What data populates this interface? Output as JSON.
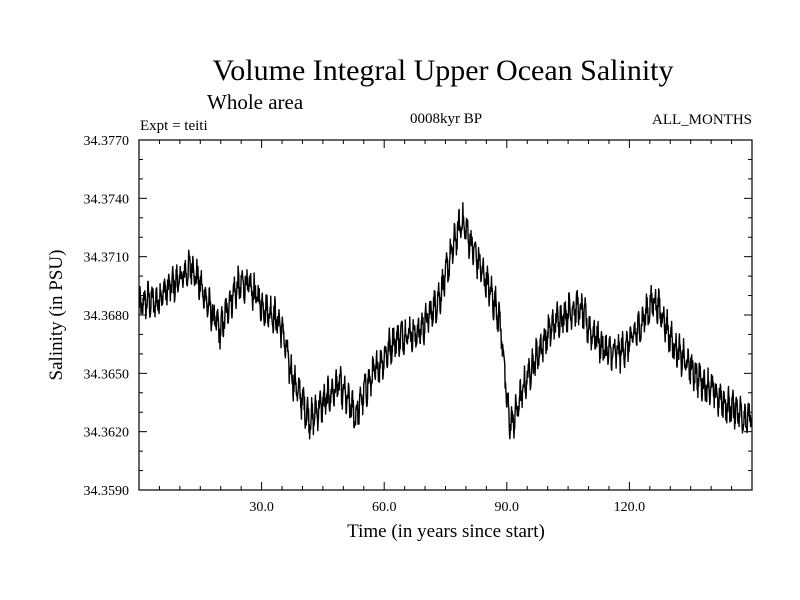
{
  "chart_data": {
    "type": "line",
    "title": "Volume Integral Upper Ocean Salinity",
    "subtitle": "Whole area",
    "experiment_label": "Expt = teiti",
    "period_label": "0008kyr BP",
    "months_label": "ALL_MONTHS",
    "xlabel": "Time (in years since start)",
    "ylabel": "Salinity (in PSU)",
    "xlim": [
      0,
      150
    ],
    "ylim": [
      34.359,
      34.377
    ],
    "x_ticks": [
      30,
      60,
      90,
      120
    ],
    "x_tick_labels": [
      "30.0",
      "60.0",
      "90.0",
      "120.0"
    ],
    "y_ticks": [
      34.359,
      34.362,
      34.365,
      34.368,
      34.371,
      34.374,
      34.377
    ],
    "y_tick_labels": [
      "34.3590",
      "34.3620",
      "34.3650",
      "34.3680",
      "34.3710",
      "34.3740",
      "34.3770"
    ],
    "grid": false,
    "series": [
      {
        "name": "salinity",
        "x": [
          0,
          2,
          4,
          6,
          8,
          10,
          12,
          13,
          15,
          17,
          19,
          20,
          22,
          24,
          26,
          28,
          30,
          31,
          33,
          35,
          36,
          37,
          38,
          40,
          41,
          42,
          44,
          46,
          48,
          49,
          50,
          52,
          53,
          55,
          57,
          58,
          60,
          62,
          64,
          66,
          68,
          70,
          72,
          74,
          75,
          76,
          77,
          78,
          79,
          80,
          81,
          82,
          84,
          86,
          88,
          89,
          90,
          91,
          92,
          94,
          96,
          98,
          100,
          102,
          104,
          106,
          107,
          109,
          110,
          112,
          114,
          116,
          118,
          120,
          122,
          124,
          125,
          126,
          128,
          130,
          132,
          134,
          136,
          138,
          140,
          142,
          144,
          146,
          148,
          150
        ],
        "values": [
          34.3683,
          34.3688,
          34.3686,
          34.3692,
          34.3695,
          34.3698,
          34.3703,
          34.3705,
          34.3695,
          34.3685,
          34.3675,
          34.3672,
          34.3686,
          34.3694,
          34.3696,
          34.3692,
          34.3685,
          34.3683,
          34.368,
          34.3673,
          34.3662,
          34.3652,
          34.3645,
          34.3636,
          34.363,
          34.3626,
          34.3632,
          34.3637,
          34.3642,
          34.3645,
          34.364,
          34.3632,
          34.3628,
          34.364,
          34.3648,
          34.3652,
          34.3658,
          34.3666,
          34.3669,
          34.3671,
          34.367,
          34.3676,
          34.3683,
          34.3692,
          34.37,
          34.3708,
          34.3716,
          34.3723,
          34.3728,
          34.3724,
          34.3718,
          34.3713,
          34.3702,
          34.3692,
          34.368,
          34.3665,
          34.3635,
          34.3623,
          34.3628,
          34.3642,
          34.3653,
          34.3662,
          34.367,
          34.3677,
          34.368,
          34.3683,
          34.3684,
          34.368,
          34.3673,
          34.3668,
          34.3662,
          34.366,
          34.3661,
          34.3666,
          34.3672,
          34.368,
          34.3684,
          34.3688,
          34.368,
          34.3669,
          34.366,
          34.3655,
          34.365,
          34.3645,
          34.3642,
          34.3637,
          34.3633,
          34.3632,
          34.3628,
          34.3626
        ]
      }
    ]
  }
}
